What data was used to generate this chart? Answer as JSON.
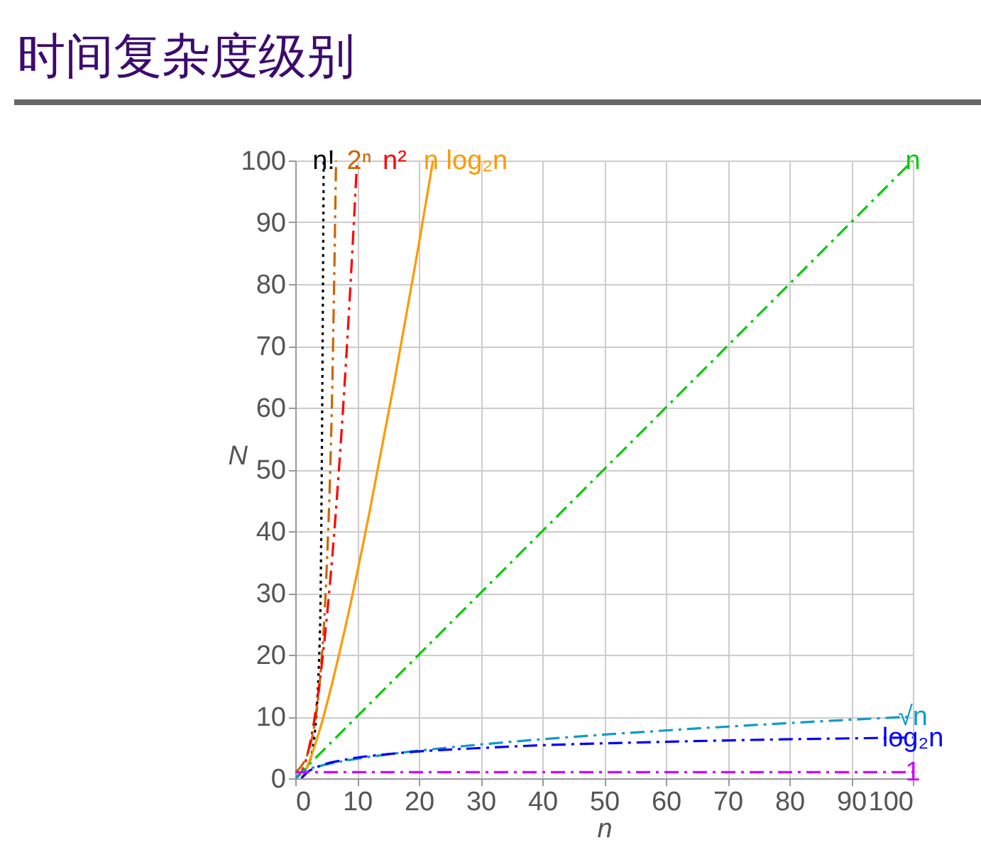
{
  "chart_data": {
    "type": "line",
    "title": "时间复杂度级别",
    "xlabel": "n",
    "ylabel": "N",
    "xlim": [
      0,
      100
    ],
    "ylim": [
      0,
      100
    ],
    "xticks": [
      0,
      10,
      20,
      30,
      40,
      50,
      60,
      70,
      80,
      90,
      100
    ],
    "yticks": [
      0,
      10,
      20,
      30,
      40,
      50,
      60,
      70,
      80,
      90,
      100
    ],
    "grid": true,
    "legend": false,
    "series": [
      {
        "name": "n!",
        "color": "#000000",
        "line_style": "dotted",
        "x": [
          0,
          1,
          2,
          3,
          4,
          4.6
        ],
        "values": [
          1,
          1,
          2,
          6,
          24,
          100
        ]
      },
      {
        "name": "2ⁿ",
        "color": "#cc6600",
        "line_style": "dashed",
        "x": [
          0,
          1,
          2,
          3,
          4,
          5,
          6,
          6.6
        ],
        "values": [
          1,
          2,
          4,
          8,
          16,
          32,
          64,
          100
        ]
      },
      {
        "name": "n²",
        "color": "#ff0000",
        "line_style": "dashed",
        "x": [
          0,
          1,
          2,
          3,
          4,
          5,
          6,
          7,
          8,
          9,
          10
        ],
        "values": [
          0,
          1,
          4,
          9,
          16,
          25,
          36,
          49,
          64,
          81,
          100
        ]
      },
      {
        "name": "n log₂n",
        "color": "#ff9900",
        "line_style": "solid",
        "x": [
          1,
          2,
          4,
          8,
          12,
          16,
          20,
          22.3
        ],
        "values": [
          0,
          2,
          8,
          24,
          43,
          64,
          86.4,
          100
        ]
      },
      {
        "name": "n",
        "color": "#00cc00",
        "line_style": "dashed",
        "x": [
          0,
          100
        ],
        "values": [
          0,
          100
        ]
      },
      {
        "name": "√n",
        "color": "#1199cc",
        "line_style": "dashed",
        "x": [
          0,
          1,
          4,
          9,
          16,
          25,
          36,
          49,
          64,
          81,
          100
        ],
        "values": [
          0,
          1,
          2,
          3,
          4,
          5,
          6,
          7,
          8,
          9,
          10
        ]
      },
      {
        "name": "log₂n",
        "color": "#0000ff",
        "line_style": "dashed",
        "x": [
          1,
          2,
          4,
          8,
          16,
          32,
          64,
          100
        ],
        "values": [
          0,
          1,
          2,
          3,
          4,
          5,
          6,
          6.6
        ]
      },
      {
        "name": "1",
        "color": "#cc00ff",
        "line_style": "dashed",
        "x": [
          0,
          100
        ],
        "values": [
          1,
          1
        ]
      }
    ]
  }
}
